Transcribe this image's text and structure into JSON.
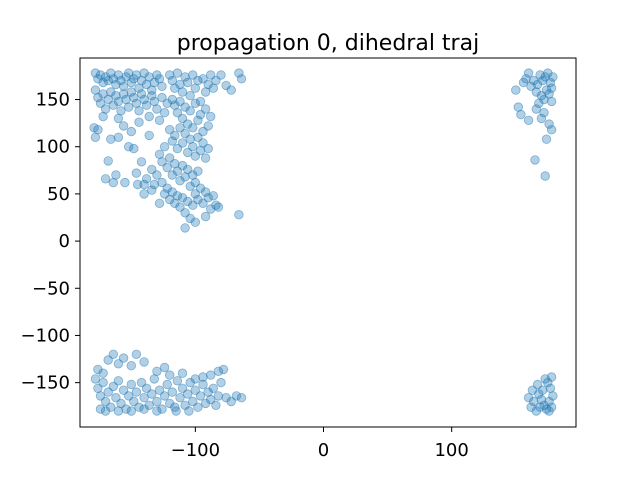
{
  "chart_data": {
    "type": "scatter",
    "title": "propagation 0, dihedral traj",
    "xlabel": "",
    "ylabel": "",
    "xlim": [
      -190,
      197
    ],
    "ylim": [
      -197,
      194
    ],
    "grid": false,
    "legend": "none",
    "xticks": [
      -100,
      0,
      100
    ],
    "xtick_labels": [
      "−100",
      "0",
      "100"
    ],
    "yticks": [
      -150,
      -100,
      -50,
      0,
      50,
      100,
      150
    ],
    "ytick_labels": [
      "−150",
      "−100",
      "−50",
      "0",
      "50",
      "100",
      "150"
    ],
    "marker_color": "#1f77b4",
    "marker_alpha": 0.35,
    "series": [
      {
        "values": [
          [
            -178,
            178
          ],
          [
            -176,
            172
          ],
          [
            -174,
            176
          ],
          [
            -172,
            168
          ],
          [
            -170,
            174
          ],
          [
            -168,
            170
          ],
          [
            -166,
            178
          ],
          [
            -164,
            172
          ],
          [
            -162,
            166
          ],
          [
            -160,
            176
          ],
          [
            -158,
            170
          ],
          [
            -156,
            164
          ],
          [
            -154,
            174
          ],
          [
            -152,
            178
          ],
          [
            -150,
            168
          ],
          [
            -148,
            172
          ],
          [
            -146,
            176
          ],
          [
            -144,
            162
          ],
          [
            -142,
            170
          ],
          [
            -140,
            178
          ],
          [
            -138,
            166
          ],
          [
            -136,
            174
          ],
          [
            -134,
            160
          ],
          [
            -132,
            168
          ],
          [
            -130,
            176
          ],
          [
            -128,
            172
          ],
          [
            -126,
            164
          ],
          [
            -178,
            160
          ],
          [
            -176,
            152
          ],
          [
            -174,
            146
          ],
          [
            -172,
            156
          ],
          [
            -170,
            140
          ],
          [
            -168,
            150
          ],
          [
            -166,
            158
          ],
          [
            -164,
            144
          ],
          [
            -162,
            154
          ],
          [
            -160,
            148
          ],
          [
            -158,
            138
          ],
          [
            -156,
            156
          ],
          [
            -154,
            150
          ],
          [
            -152,
            142
          ],
          [
            -150,
            158
          ],
          [
            -148,
            152
          ],
          [
            -146,
            146
          ],
          [
            -144,
            138
          ],
          [
            -142,
            156
          ],
          [
            -140,
            150
          ],
          [
            -138,
            144
          ],
          [
            -136,
            132
          ],
          [
            -134,
            154
          ],
          [
            -132,
            148
          ],
          [
            -130,
            140
          ],
          [
            -128,
            128
          ],
          [
            -126,
            152
          ],
          [
            -124,
            136
          ],
          [
            -122,
            146
          ],
          [
            -179,
            120
          ],
          [
            -178,
            110
          ],
          [
            -176,
            118
          ],
          [
            -168,
            85
          ],
          [
            -170,
            66
          ],
          [
            -164,
            62
          ],
          [
            -162,
            70
          ],
          [
            -166,
            108
          ],
          [
            -160,
            130
          ],
          [
            -156,
            122
          ],
          [
            -152,
            100
          ],
          [
            -150,
            116
          ],
          [
            -148,
            98
          ],
          [
            -146,
            72
          ],
          [
            -142,
            84
          ],
          [
            -140,
            60
          ],
          [
            -138,
            66
          ],
          [
            -134,
            76
          ],
          [
            -155,
            62
          ],
          [
            -145,
            60
          ],
          [
            -136,
            112
          ],
          [
            -144,
            126
          ],
          [
            -172,
            132
          ],
          [
            -160,
            110
          ],
          [
            -120,
            176
          ],
          [
            -118,
            170
          ],
          [
            -116,
            162
          ],
          [
            -114,
            178
          ],
          [
            -112,
            166
          ],
          [
            -110,
            158
          ],
          [
            -108,
            174
          ],
          [
            -106,
            168
          ],
          [
            -104,
            154
          ],
          [
            -102,
            176
          ],
          [
            -100,
            162
          ],
          [
            -98,
            170
          ],
          [
            -96,
            148
          ],
          [
            -94,
            172
          ],
          [
            -92,
            158
          ],
          [
            -90,
            166
          ],
          [
            -88,
            176
          ],
          [
            -86,
            162
          ],
          [
            -84,
            170
          ],
          [
            -80,
            176
          ],
          [
            -76,
            165
          ],
          [
            -72,
            160
          ],
          [
            -66,
            178
          ],
          [
            -64,
            172
          ],
          [
            -118,
            150
          ],
          [
            -116,
            144
          ],
          [
            -114,
            136
          ],
          [
            -112,
            148
          ],
          [
            -110,
            130
          ],
          [
            -108,
            142
          ],
          [
            -106,
            124
          ],
          [
            -104,
            138
          ],
          [
            -102,
            120
          ],
          [
            -100,
            146
          ],
          [
            -98,
            128
          ],
          [
            -96,
            134
          ],
          [
            -94,
            116
          ],
          [
            -92,
            140
          ],
          [
            -90,
            122
          ],
          [
            -88,
            132
          ],
          [
            -120,
            118
          ],
          [
            -118,
            106
          ],
          [
            -116,
            112
          ],
          [
            -114,
            98
          ],
          [
            -112,
            120
          ],
          [
            -110,
            104
          ],
          [
            -108,
            114
          ],
          [
            -106,
            94
          ],
          [
            -104,
            108
          ],
          [
            -102,
            100
          ],
          [
            -100,
            90
          ],
          [
            -98,
            110
          ],
          [
            -96,
            96
          ],
          [
            -94,
            104
          ],
          [
            -92,
            88
          ],
          [
            -90,
            98
          ],
          [
            -128,
            92
          ],
          [
            -126,
            84
          ],
          [
            -124,
            100
          ],
          [
            -122,
            78
          ],
          [
            -120,
            88
          ],
          [
            -118,
            70
          ],
          [
            -116,
            82
          ],
          [
            -114,
            74
          ],
          [
            -112,
            64
          ],
          [
            -110,
            80
          ],
          [
            -108,
            68
          ],
          [
            -106,
            76
          ],
          [
            -104,
            58
          ],
          [
            -102,
            70
          ],
          [
            -100,
            62
          ],
          [
            -98,
            74
          ],
          [
            -130,
            70
          ],
          [
            -132,
            60
          ],
          [
            -134,
            54
          ],
          [
            -126,
            62
          ],
          [
            -124,
            50
          ],
          [
            -122,
            56
          ],
          [
            -120,
            44
          ],
          [
            -118,
            52
          ],
          [
            -116,
            40
          ],
          [
            -114,
            48
          ],
          [
            -112,
            36
          ],
          [
            -110,
            46
          ],
          [
            -108,
            30
          ],
          [
            -106,
            42
          ],
          [
            -104,
            24
          ],
          [
            -102,
            38
          ],
          [
            -100,
            50
          ],
          [
            -98,
            44
          ],
          [
            -96,
            56
          ],
          [
            -94,
            40
          ],
          [
            -92,
            52
          ],
          [
            -90,
            46
          ],
          [
            -88,
            34
          ],
          [
            -86,
            48
          ],
          [
            -84,
            38
          ],
          [
            -82,
            36
          ],
          [
            -66,
            28
          ],
          [
            -108,
            14
          ],
          [
            -100,
            20
          ],
          [
            -92,
            26
          ],
          [
            -128,
            40
          ],
          [
            -140,
            50
          ],
          [
            175,
            178
          ],
          [
            173,
            174
          ],
          [
            171,
            170
          ],
          [
            169,
            176
          ],
          [
            167,
            166
          ],
          [
            177,
            168
          ],
          [
            179,
            174
          ],
          [
            178,
            162
          ],
          [
            176,
            156
          ],
          [
            174,
            160
          ],
          [
            172,
            150
          ],
          [
            170,
            154
          ],
          [
            168,
            146
          ],
          [
            166,
            158
          ],
          [
            164,
            170
          ],
          [
            162,
            164
          ],
          [
            160,
            178
          ],
          [
            158,
            172
          ],
          [
            156,
            168
          ],
          [
            150,
            160
          ],
          [
            152,
            142
          ],
          [
            154,
            134
          ],
          [
            160,
            128
          ],
          [
            166,
            140
          ],
          [
            172,
            136
          ],
          [
            176,
            124
          ],
          [
            178,
            118
          ],
          [
            174,
            108
          ],
          [
            165,
            86
          ],
          [
            173,
            69
          ],
          [
            178,
            148
          ],
          [
            170,
            130
          ],
          [
            -178,
            -146
          ],
          [
            -176,
            -156
          ],
          [
            -174,
            -164
          ],
          [
            -172,
            -150
          ],
          [
            -170,
            -170
          ],
          [
            -168,
            -160
          ],
          [
            -166,
            -176
          ],
          [
            -164,
            -154
          ],
          [
            -162,
            -166
          ],
          [
            -160,
            -148
          ],
          [
            -158,
            -172
          ],
          [
            -156,
            -158
          ],
          [
            -154,
            -178
          ],
          [
            -152,
            -164
          ],
          [
            -150,
            -152
          ],
          [
            -148,
            -170
          ],
          [
            -146,
            -160
          ],
          [
            -144,
            -176
          ],
          [
            -142,
            -150
          ],
          [
            -140,
            -166
          ],
          [
            -138,
            -156
          ],
          [
            -136,
            -174
          ],
          [
            -134,
            -162
          ],
          [
            -132,
            -146
          ],
          [
            -130,
            -170
          ],
          [
            -128,
            -158
          ],
          [
            -126,
            -178
          ],
          [
            -124,
            -164
          ],
          [
            -122,
            -152
          ],
          [
            -120,
            -172
          ],
          [
            -118,
            -160
          ],
          [
            -116,
            -176
          ],
          [
            -114,
            -148
          ],
          [
            -112,
            -166
          ],
          [
            -110,
            -156
          ],
          [
            -108,
            -174
          ],
          [
            -106,
            -162
          ],
          [
            -104,
            -150
          ],
          [
            -102,
            -170
          ],
          [
            -100,
            -158
          ],
          [
            -98,
            -176
          ],
          [
            -96,
            -164
          ],
          [
            -94,
            -152
          ],
          [
            -92,
            -172
          ],
          [
            -90,
            -160
          ],
          [
            -88,
            -168
          ],
          [
            -86,
            -156
          ],
          [
            -84,
            -174
          ],
          [
            -82,
            -164
          ],
          [
            -80,
            -150
          ],
          [
            -76,
            -166
          ],
          [
            -72,
            -170
          ],
          [
            -68,
            -164
          ],
          [
            -64,
            -166
          ],
          [
            -78,
            -136
          ],
          [
            -82,
            -138
          ],
          [
            -168,
            -126
          ],
          [
            -164,
            -120
          ],
          [
            -160,
            -130
          ],
          [
            -156,
            -124
          ],
          [
            -150,
            -132
          ],
          [
            -146,
            -120
          ],
          [
            -140,
            -128
          ],
          [
            -130,
            -138
          ],
          [
            -120,
            -142
          ],
          [
            -124,
            -134
          ],
          [
            -110,
            -140
          ],
          [
            -100,
            -146
          ],
          [
            -94,
            -144
          ],
          [
            -88,
            -142
          ],
          [
            -176,
            -136
          ],
          [
            -172,
            -140
          ],
          [
            -174,
            -178
          ],
          [
            -170,
            -180
          ],
          [
            -160,
            -180
          ],
          [
            -150,
            -180
          ],
          [
            -140,
            -178
          ],
          [
            -130,
            -180
          ],
          [
            -115,
            -180
          ],
          [
            -105,
            -180
          ],
          [
            174,
            -178
          ],
          [
            172,
            -174
          ],
          [
            170,
            -168
          ],
          [
            168,
            -162
          ],
          [
            176,
            -170
          ],
          [
            178,
            -176
          ],
          [
            179,
            -164
          ],
          [
            177,
            -156
          ],
          [
            175,
            -150
          ],
          [
            173,
            -146
          ],
          [
            178,
            -144
          ],
          [
            171,
            -158
          ],
          [
            169,
            -176
          ],
          [
            166,
            -180
          ],
          [
            164,
            -170
          ],
          [
            162,
            -176
          ],
          [
            160,
            -166
          ],
          [
            163,
            -158
          ],
          [
            167,
            -152
          ],
          [
            176,
            -180
          ]
        ]
      }
    ]
  }
}
